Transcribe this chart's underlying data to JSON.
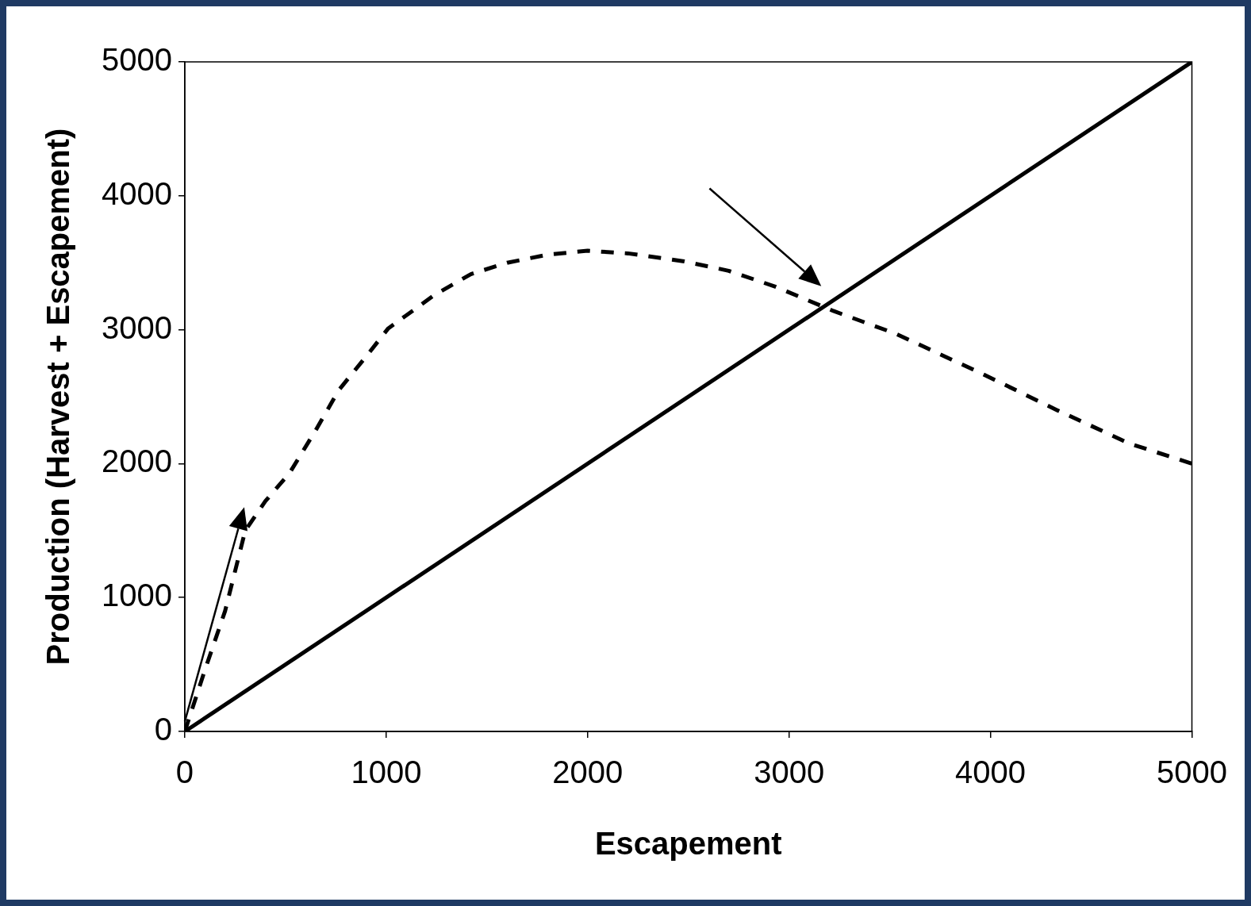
{
  "chart_data": {
    "type": "line",
    "xlabel": "Escapement",
    "ylabel": "Production (Harvest + Escapement)",
    "xlim": [
      0,
      5000
    ],
    "ylim": [
      0,
      5000
    ],
    "xticks": [
      0,
      1000,
      2000,
      3000,
      4000,
      5000
    ],
    "yticks": [
      0,
      1000,
      2000,
      3000,
      4000,
      5000
    ],
    "grid": false,
    "legend": false,
    "marker": "none",
    "series": [
      {
        "color": "#000000",
        "line_style": "solid",
        "x": [
          0,
          5000
        ],
        "values": [
          0,
          5000
        ]
      },
      {
        "color": "#000000",
        "line_style": "dashed",
        "x": [
          0,
          100,
          200,
          300,
          400,
          520,
          650,
          765,
          900,
          1010,
          1240,
          1420,
          1600,
          1800,
          2000,
          2200,
          2480,
          2700,
          2935,
          3220,
          3530,
          3960,
          4330,
          4690,
          5000
        ],
        "values": [
          0,
          460,
          900,
          1500,
          1720,
          1930,
          2250,
          2550,
          2800,
          3010,
          3260,
          3415,
          3500,
          3560,
          3590,
          3570,
          3510,
          3440,
          3320,
          3140,
          2970,
          2670,
          2400,
          2150,
          2000
        ]
      }
    ]
  }
}
